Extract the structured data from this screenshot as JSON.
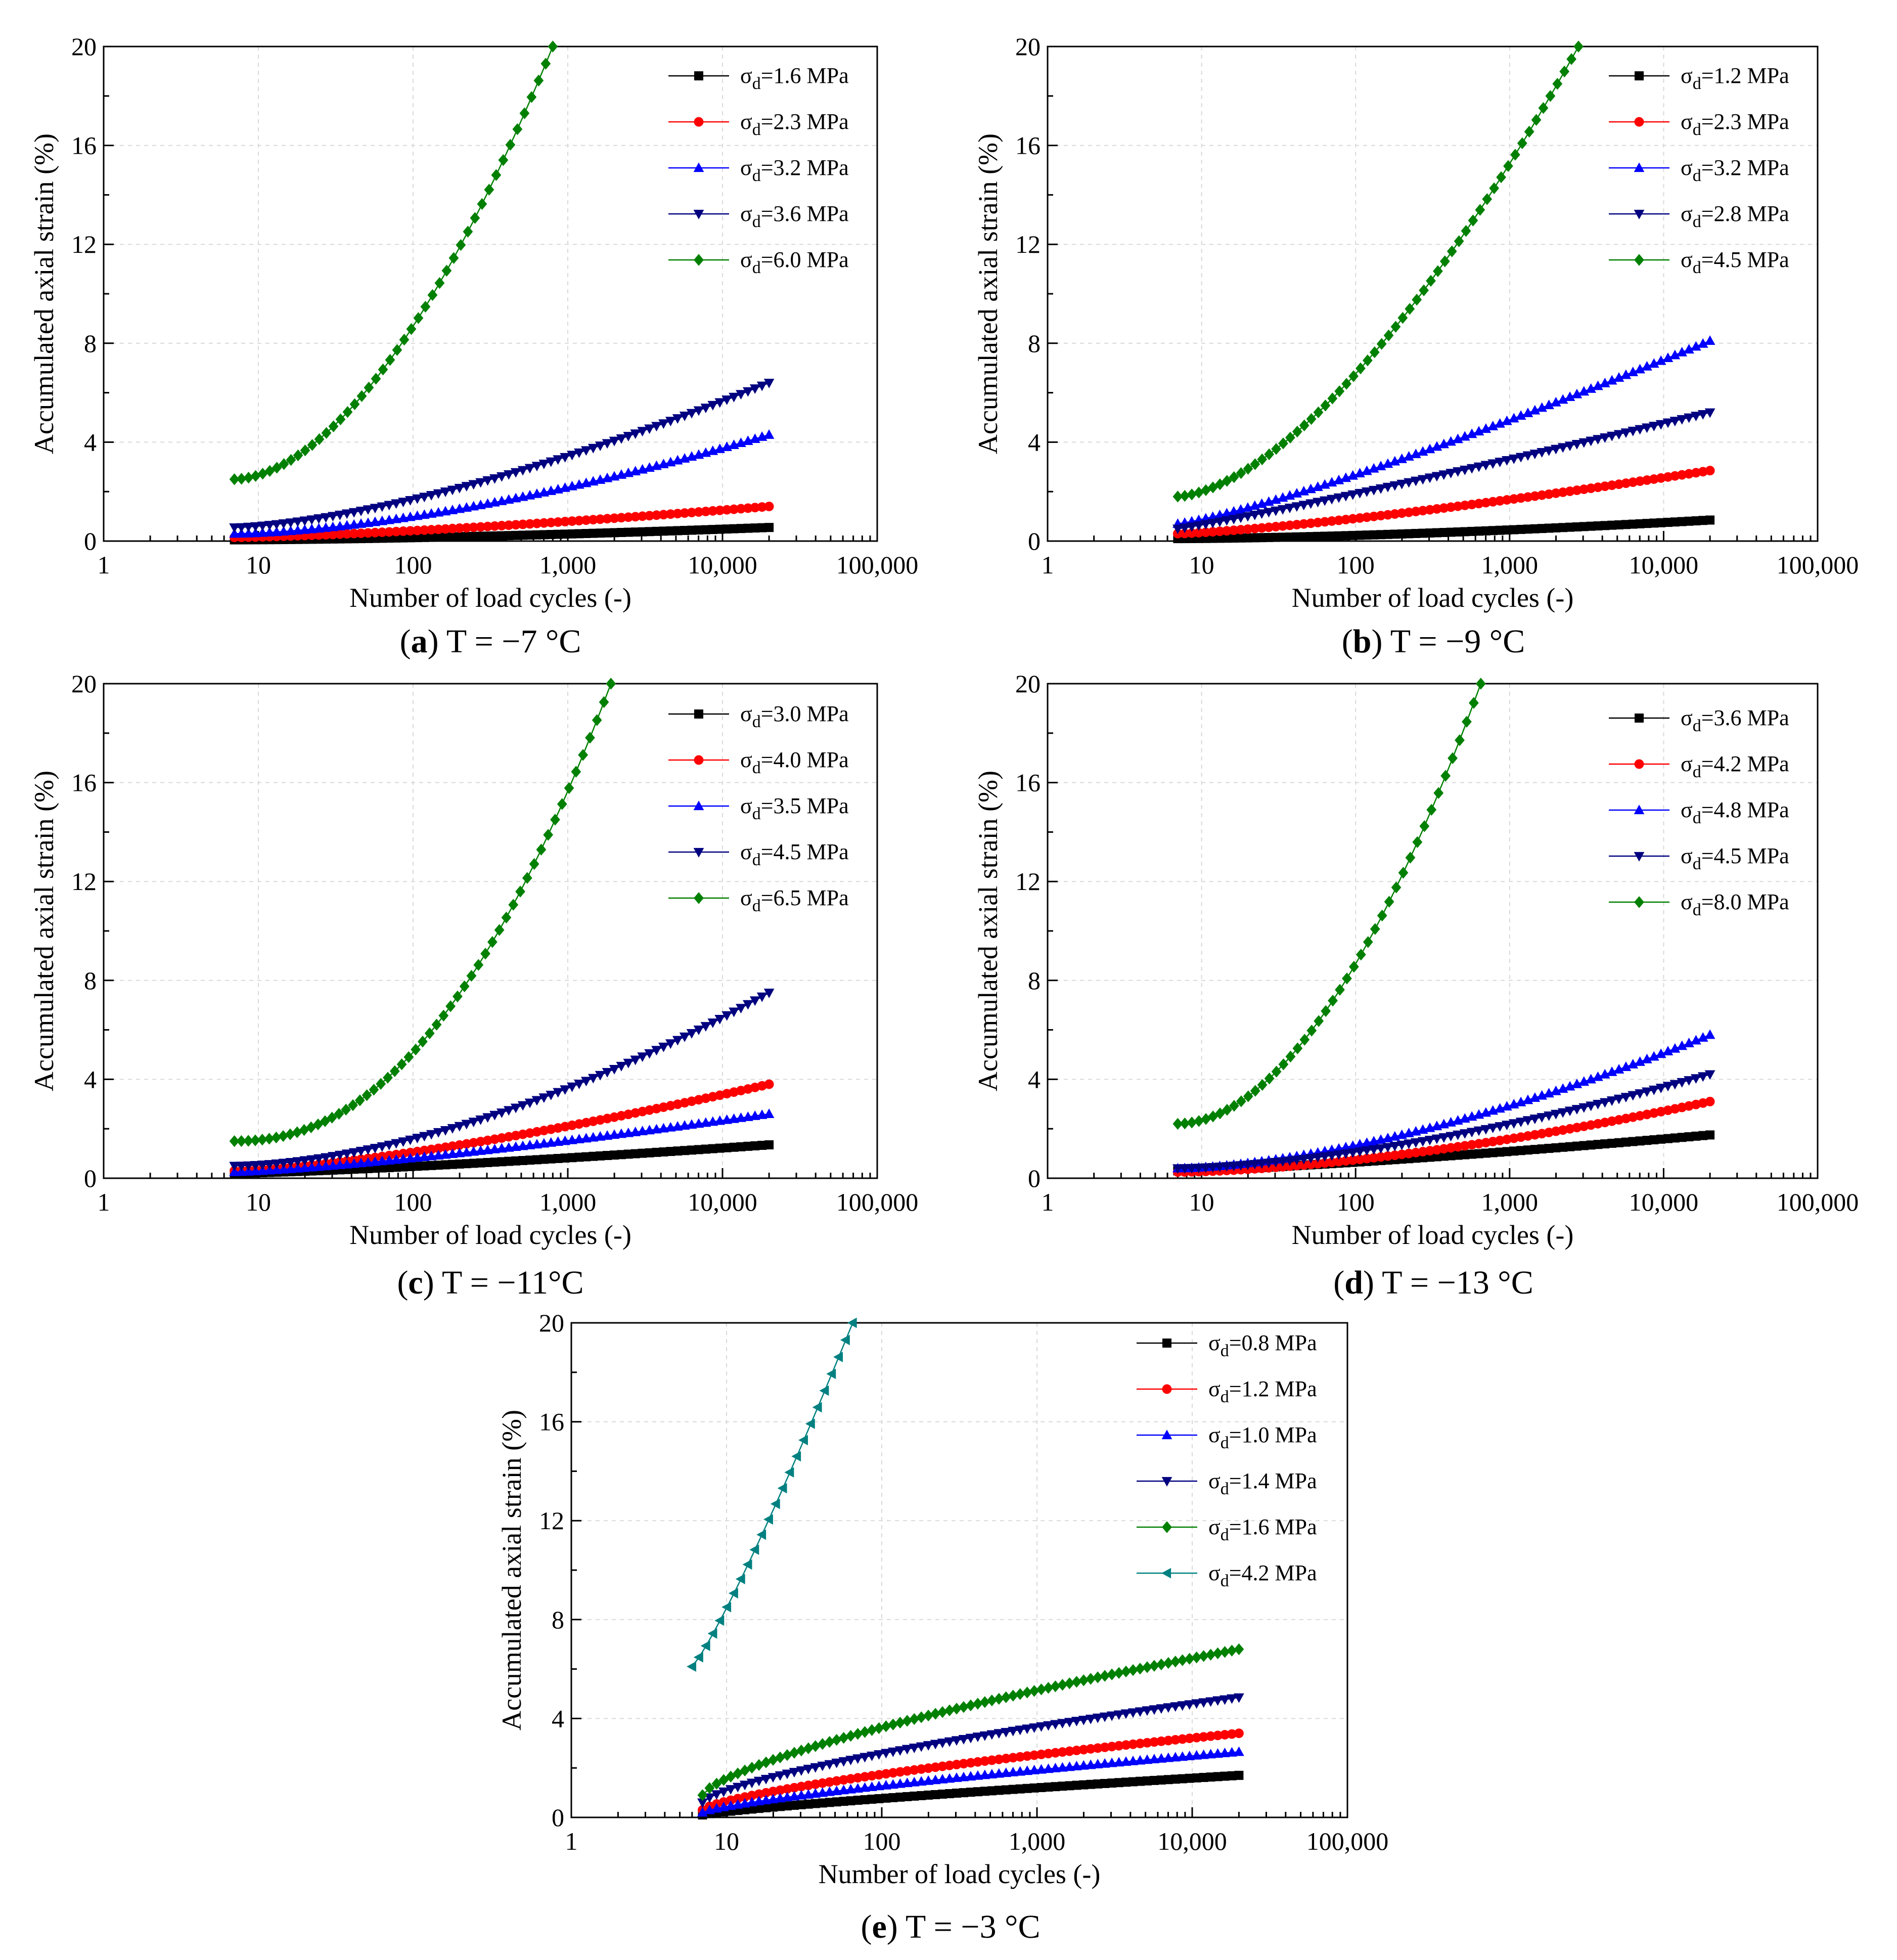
{
  "chart_data": [
    {
      "type": "line",
      "caption_letter": "a",
      "caption_text": "T = −7 °C",
      "xlabel": "Number of load cycles (-)",
      "ylabel": "Accumulated axial strain (%)",
      "xscale": "log",
      "xlim": [
        1,
        100000
      ],
      "ylim": [
        0,
        20
      ],
      "xticks": [
        1,
        10,
        100,
        1000,
        10000,
        100000
      ],
      "xtick_labels": [
        "1",
        "10",
        "100",
        "1,000",
        "10,000",
        "100,000"
      ],
      "yticks": [
        0,
        4,
        8,
        12,
        16,
        20
      ],
      "ytick_labels": [
        "0",
        "4",
        "8",
        "12",
        "16",
        "20"
      ],
      "grid": true,
      "legend_position": "top-right",
      "series": [
        {
          "name": "=1.6 MPa",
          "color": "#000000",
          "marker": "square",
          "x": [
            7,
            20000
          ],
          "values": [
            0.05,
            0.55
          ],
          "curve": 1.6
        },
        {
          "name": "=2.3 MPa",
          "color": "#ff0000",
          "marker": "circle",
          "x": [
            7,
            20000
          ],
          "values": [
            0.15,
            1.4
          ],
          "curve": 1.4
        },
        {
          "name": "=3.2 MPa",
          "color": "#0000ff",
          "marker": "triangle-up",
          "x": [
            7,
            20000
          ],
          "values": [
            0.3,
            4.3
          ],
          "curve": 1.6
        },
        {
          "name": "=3.6 MPa",
          "color": "#000080",
          "marker": "triangle-down",
          "x": [
            7,
            20000
          ],
          "values": [
            0.55,
            6.4
          ],
          "curve": 1.5
        },
        {
          "name": "=6.0 MPa",
          "color": "#008000",
          "marker": "diamond",
          "x": [
            7,
            800
          ],
          "values": [
            2.5,
            20
          ],
          "curve": 1.8
        }
      ]
    },
    {
      "type": "line",
      "caption_letter": "b",
      "caption_text": "T = −9 °C",
      "xlabel": "Number of load cycles (-)",
      "ylabel": "Accumulated axial strain (%)",
      "xscale": "log",
      "xlim": [
        1,
        100000
      ],
      "ylim": [
        0,
        20
      ],
      "xticks": [
        1,
        10,
        100,
        1000,
        10000,
        100000
      ],
      "xtick_labels": [
        "1",
        "10",
        "100",
        "1,000",
        "10,000",
        "100,000"
      ],
      "yticks": [
        0,
        4,
        8,
        12,
        16,
        20
      ],
      "ytick_labels": [
        "0",
        "4",
        "8",
        "12",
        "16",
        "20"
      ],
      "grid": true,
      "legend_position": "top-right",
      "series": [
        {
          "name": "=1.2 MPa",
          "color": "#000000",
          "marker": "square",
          "x": [
            7,
            20000
          ],
          "values": [
            0.1,
            0.85
          ],
          "curve": 1.6
        },
        {
          "name": "=2.3 MPa",
          "color": "#ff0000",
          "marker": "circle",
          "x": [
            7,
            20000
          ],
          "values": [
            0.3,
            2.85
          ],
          "curve": 1.3
        },
        {
          "name": "=3.2 MPa",
          "color": "#0000ff",
          "marker": "triangle-up",
          "x": [
            7,
            20000
          ],
          "values": [
            0.7,
            8.1
          ],
          "curve": 1.2
        },
        {
          "name": "=2.8 MPa",
          "color": "#000080",
          "marker": "triangle-down",
          "x": [
            7,
            20000
          ],
          "values": [
            0.5,
            5.2
          ],
          "curve": 1.1
        },
        {
          "name": "=4.5 MPa",
          "color": "#008000",
          "marker": "diamond",
          "x": [
            7,
            2800
          ],
          "values": [
            1.8,
            20
          ],
          "curve": 1.6
        }
      ]
    },
    {
      "type": "line",
      "caption_letter": "c",
      "caption_text": "T = −11°C",
      "xlabel": "Number of load cycles (-)",
      "ylabel": "Accumulated axial strain (%)",
      "xscale": "log",
      "xlim": [
        1,
        100000
      ],
      "ylim": [
        0,
        20
      ],
      "xticks": [
        1,
        10,
        100,
        1000,
        10000,
        100000
      ],
      "xtick_labels": [
        "1",
        "10",
        "100",
        "1,000",
        "10,000",
        "100,000"
      ],
      "yticks": [
        0,
        4,
        8,
        12,
        16,
        20
      ],
      "ytick_labels": [
        "0",
        "4",
        "8",
        "12",
        "16",
        "20"
      ],
      "grid": true,
      "legend_position": "top-right",
      "series": [
        {
          "name": "=3.0 MPa",
          "color": "#000000",
          "marker": "square",
          "x": [
            7,
            20000
          ],
          "values": [
            0.2,
            1.35
          ],
          "curve": 1.3
        },
        {
          "name": "=4.0 MPa",
          "color": "#ff0000",
          "marker": "circle",
          "x": [
            7,
            20000
          ],
          "values": [
            0.3,
            3.8
          ],
          "curve": 1.4
        },
        {
          "name": "=3.5 MPa",
          "color": "#0000ff",
          "marker": "triangle-up",
          "x": [
            7,
            20000
          ],
          "values": [
            0.25,
            2.6
          ],
          "curve": 1.3
        },
        {
          "name": "=4.5 MPa",
          "color": "#000080",
          "marker": "triangle-down",
          "x": [
            7,
            20000
          ],
          "values": [
            0.5,
            7.5
          ],
          "curve": 1.7
        },
        {
          "name": "=6.5 MPa",
          "color": "#008000",
          "marker": "diamond",
          "x": [
            7,
            1900
          ],
          "values": [
            1.5,
            20
          ],
          "curve": 2.2
        }
      ]
    },
    {
      "type": "line",
      "caption_letter": "d",
      "caption_text": "T = −13 °C",
      "xlabel": "Number of load cycles (-)",
      "ylabel": "Accumulated axial strain (%)",
      "xscale": "log",
      "xlim": [
        1,
        100000
      ],
      "ylim": [
        0,
        20
      ],
      "xticks": [
        1,
        10,
        100,
        1000,
        10000,
        100000
      ],
      "xtick_labels": [
        "1",
        "10",
        "100",
        "1,000",
        "10,000",
        "100,000"
      ],
      "yticks": [
        0,
        4,
        8,
        12,
        16,
        20
      ],
      "ytick_labels": [
        "0",
        "4",
        "8",
        "12",
        "16",
        "20"
      ],
      "grid": true,
      "legend_position": "top-right",
      "series": [
        {
          "name": "=3.6 MPa",
          "color": "#000000",
          "marker": "square",
          "x": [
            7,
            20000
          ],
          "values": [
            0.3,
            1.75
          ],
          "curve": 1.3
        },
        {
          "name": "=4.2 MPa",
          "color": "#ff0000",
          "marker": "circle",
          "x": [
            7,
            20000
          ],
          "values": [
            0.25,
            3.1
          ],
          "curve": 1.6
        },
        {
          "name": "=4.8 MPa",
          "color": "#0000ff",
          "marker": "triangle-up",
          "x": [
            7,
            20000
          ],
          "values": [
            0.4,
            5.8
          ],
          "curve": 1.6
        },
        {
          "name": "=4.5 MPa",
          "color": "#000080",
          "marker": "triangle-down",
          "x": [
            7,
            20000
          ],
          "values": [
            0.4,
            4.2
          ],
          "curve": 1.6
        },
        {
          "name": "=8.0 MPa",
          "color": "#008000",
          "marker": "diamond",
          "x": [
            7,
            650
          ],
          "values": [
            2.2,
            20
          ],
          "curve": 1.9
        }
      ]
    },
    {
      "type": "line",
      "caption_letter": "e",
      "caption_text": "T = −3 °C",
      "xlabel": "Number of load cycles (-)",
      "ylabel": "Accumulated axial strain (%)",
      "xscale": "log",
      "xlim": [
        1,
        100000
      ],
      "ylim": [
        0,
        20
      ],
      "xticks": [
        1,
        10,
        100,
        1000,
        10000,
        100000
      ],
      "xtick_labels": [
        "1",
        "10",
        "100",
        "1,000",
        "10,000",
        "100,000"
      ],
      "yticks": [
        0,
        4,
        8,
        12,
        16,
        20
      ],
      "ytick_labels": [
        "0",
        "4",
        "8",
        "12",
        "16",
        "20"
      ],
      "grid": true,
      "legend_position": "top-right",
      "series": [
        {
          "name": "=0.8 MPa",
          "color": "#000000",
          "marker": "square",
          "x": [
            7,
            20000
          ],
          "values": [
            0.1,
            1.7
          ],
          "curve": 0.8
        },
        {
          "name": "=1.2 MPa",
          "color": "#ff0000",
          "marker": "circle",
          "x": [
            7,
            20000
          ],
          "values": [
            0.3,
            3.4
          ],
          "curve": 0.7
        },
        {
          "name": "=1.0 MPa",
          "color": "#0000ff",
          "marker": "triangle-up",
          "x": [
            7,
            20000
          ],
          "values": [
            0.2,
            2.65
          ],
          "curve": 0.75
        },
        {
          "name": "=1.4 MPa",
          "color": "#000080",
          "marker": "triangle-down",
          "x": [
            7,
            20000
          ],
          "values": [
            0.6,
            4.85
          ],
          "curve": 0.7
        },
        {
          "name": "=1.6 MPa",
          "color": "#008000",
          "marker": "diamond",
          "x": [
            7,
            20000
          ],
          "values": [
            0.9,
            6.8
          ],
          "curve": 0.7
        },
        {
          "name": "=4.2 MPa",
          "color": "#008080",
          "marker": "triangle-left",
          "x": [
            6,
            65
          ],
          "values": [
            6.1,
            20
          ],
          "curve": 1.15
        }
      ]
    }
  ]
}
